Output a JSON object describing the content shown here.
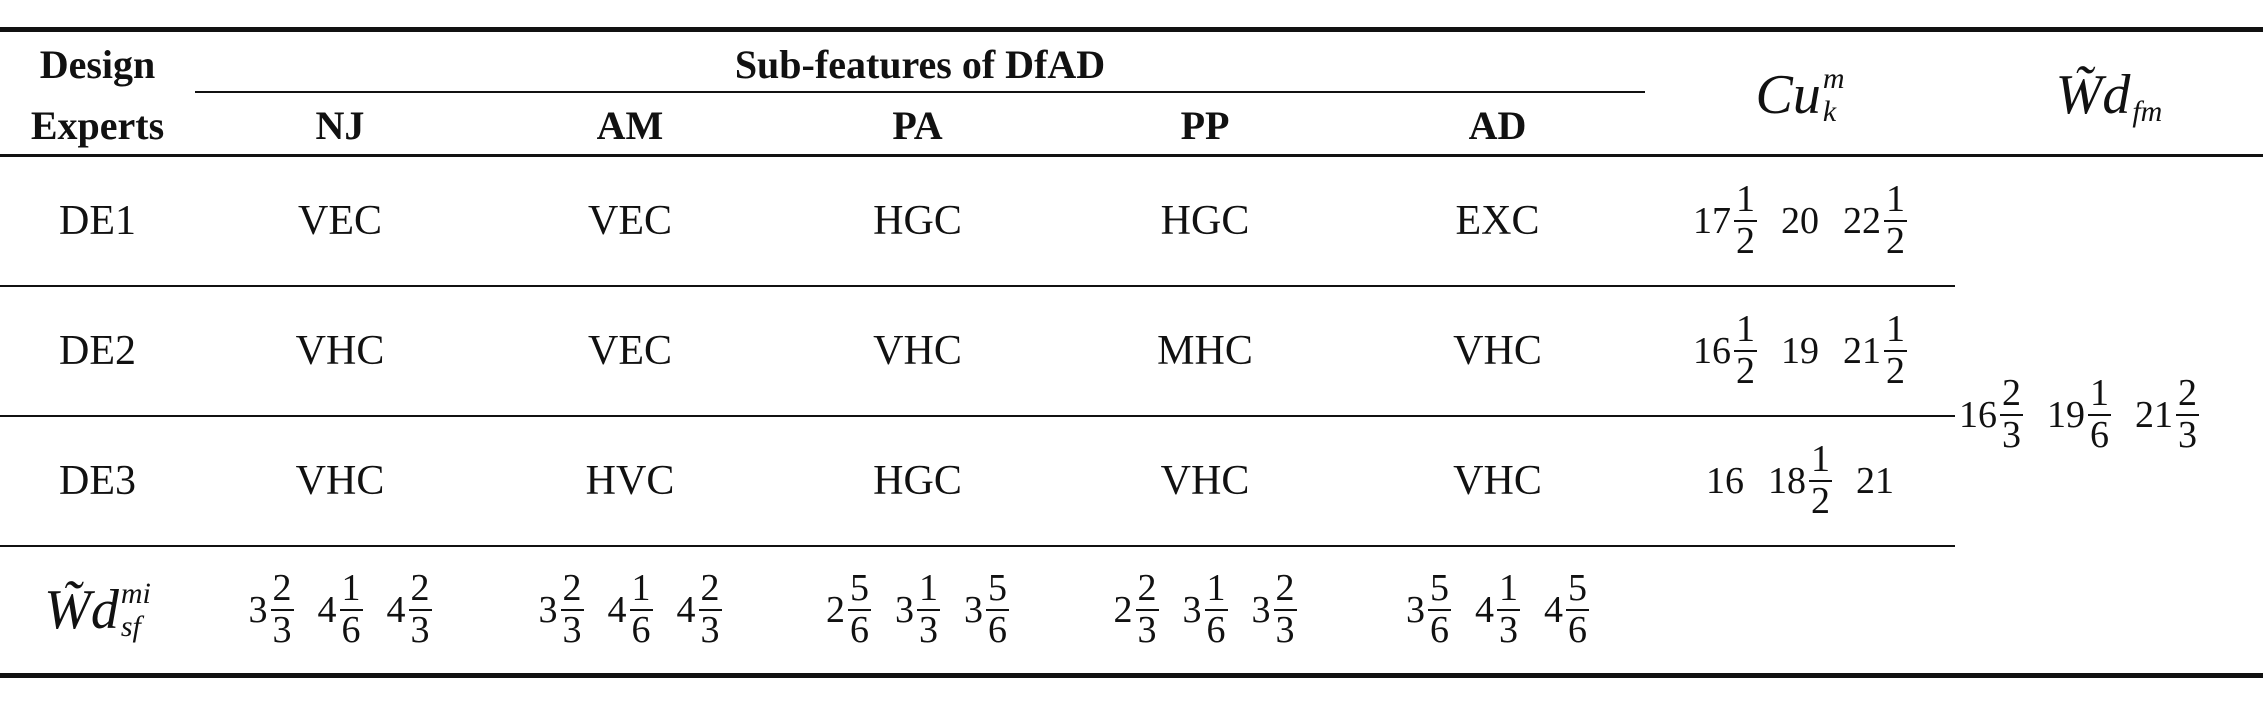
{
  "header": {
    "row_label_top": "Design",
    "row_label_bottom": "Experts",
    "group": "Sub-features of DfAD",
    "subfeatures": [
      "NJ",
      "AM",
      "PA",
      "PP",
      "AD"
    ],
    "cu": {
      "base": "Cu",
      "sup": "m",
      "sub": "k"
    },
    "wd_fm": {
      "base": "W̃d",
      "sub": "fm"
    }
  },
  "rows": [
    {
      "expert": "DE1",
      "ratings": [
        "VEC",
        "VEC",
        "HGC",
        "HGC",
        "EXC"
      ],
      "cu": [
        {
          "whole": 17,
          "num": 1,
          "den": 2
        },
        {
          "whole": 20
        },
        {
          "whole": 22,
          "num": 1,
          "den": 2
        }
      ]
    },
    {
      "expert": "DE2",
      "ratings": [
        "VHC",
        "VEC",
        "VHC",
        "MHC",
        "VHC"
      ],
      "cu": [
        {
          "whole": 16,
          "num": 1,
          "den": 2
        },
        {
          "whole": 19
        },
        {
          "whole": 21,
          "num": 1,
          "den": 2
        }
      ]
    },
    {
      "expert": "DE3",
      "ratings": [
        "VHC",
        "HVC",
        "HGC",
        "VHC",
        "VHC"
      ],
      "cu": [
        {
          "whole": 16
        },
        {
          "whole": 18,
          "num": 1,
          "den": 2
        },
        {
          "whole": 21
        }
      ]
    }
  ],
  "footer": {
    "label": {
      "base": "W̃d",
      "sup": "mi",
      "sub": "sf"
    },
    "values": [
      [
        {
          "whole": 3,
          "num": 2,
          "den": 3
        },
        {
          "whole": 4,
          "num": 1,
          "den": 6
        },
        {
          "whole": 4,
          "num": 2,
          "den": 3
        }
      ],
      [
        {
          "whole": 3,
          "num": 2,
          "den": 3
        },
        {
          "whole": 4,
          "num": 1,
          "den": 6
        },
        {
          "whole": 4,
          "num": 2,
          "den": 3
        }
      ],
      [
        {
          "whole": 2,
          "num": 5,
          "den": 6
        },
        {
          "whole": 3,
          "num": 1,
          "den": 3
        },
        {
          "whole": 3,
          "num": 5,
          "den": 6
        }
      ],
      [
        {
          "whole": 2,
          "num": 2,
          "den": 3
        },
        {
          "whole": 3,
          "num": 1,
          "den": 6
        },
        {
          "whole": 3,
          "num": 2,
          "den": 3
        }
      ],
      [
        {
          "whole": 3,
          "num": 5,
          "den": 6
        },
        {
          "whole": 4,
          "num": 1,
          "den": 3
        },
        {
          "whole": 4,
          "num": 5,
          "den": 6
        }
      ]
    ]
  },
  "wd_fm_values": [
    {
      "whole": 16,
      "num": 2,
      "den": 3
    },
    {
      "whole": 19,
      "num": 1,
      "den": 6
    },
    {
      "whole": 21,
      "num": 2,
      "den": 3
    }
  ]
}
